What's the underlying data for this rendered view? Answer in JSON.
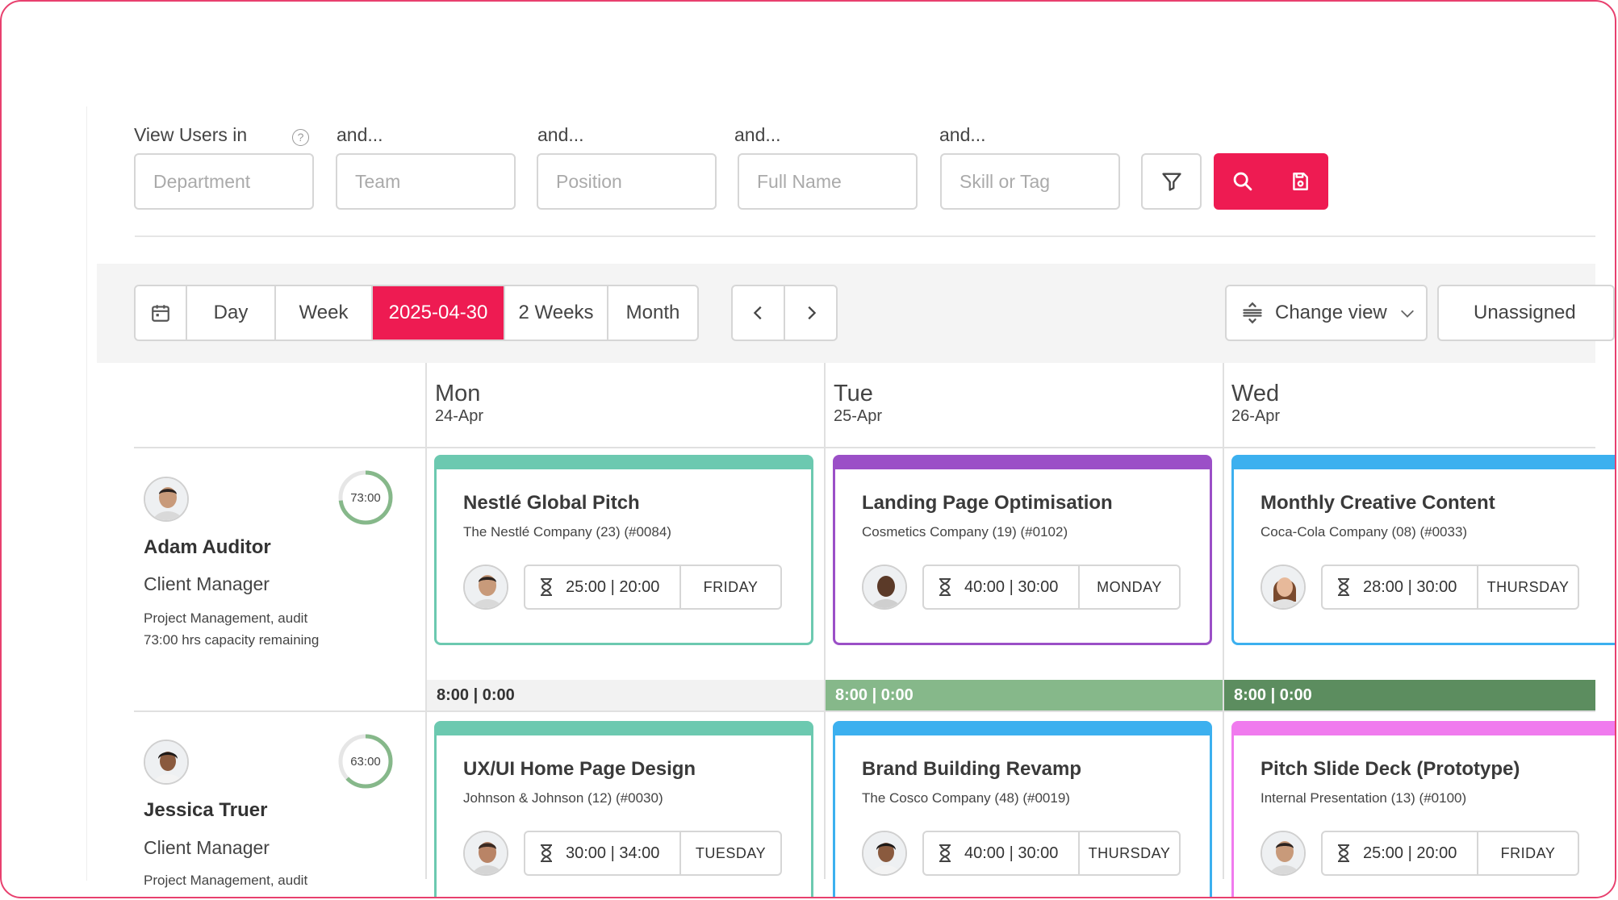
{
  "filters": {
    "label_view_users": "View Users in",
    "label_and": "and...",
    "department_placeholder": "Department",
    "team_placeholder": "Team",
    "position_placeholder": "Position",
    "full_name_placeholder": "Full Name",
    "skill_placeholder": "Skill or Tag"
  },
  "toolbar": {
    "day_label": "Day",
    "week_label": "Week",
    "date_label": "2025-04-30",
    "two_weeks_label": "2 Weeks",
    "month_label": "Month",
    "change_view_label": "Change view",
    "unassigned_label": "Unassigned"
  },
  "days": [
    {
      "name": "Mon",
      "date": "24-Apr"
    },
    {
      "name": "Tue",
      "date": "25-Apr"
    },
    {
      "name": "Wed",
      "date": "26-Apr"
    }
  ],
  "users": [
    {
      "name": "Adam Auditor",
      "role": "Client Manager",
      "skills": "Project Management, audit",
      "capacity": "73:00 hrs capacity remaining",
      "ring": "73:00",
      "ring_fraction": 0.73
    },
    {
      "name": "Jessica Truer",
      "role": "Client Manager",
      "skills": "Project Management, audit",
      "ring": "63:00",
      "ring_fraction": 0.63
    }
  ],
  "totals": [
    "8:00 | 0:00",
    "8:00 | 0:00",
    "8:00 | 0:00"
  ],
  "total_colors": [
    "#f2f2f2",
    "#86b88a",
    "#5c8d5f"
  ],
  "cards": [
    {
      "title": "Nestlé Global Pitch",
      "subtitle": "The Nestlé Company (23) (#0084)",
      "hours": "25:00 | 20:00",
      "day": "FRIDAY",
      "color": "#6cc9b0"
    },
    {
      "title": "Landing Page Optimisation",
      "subtitle": "Cosmetics Company (19) (#0102)",
      "hours": "40:00 | 30:00",
      "day": "MONDAY",
      "color": "#9b4fc7"
    },
    {
      "title": "Monthly Creative Content",
      "subtitle": "Coca-Cola Company (08) (#0033)",
      "hours": "28:00 | 30:00",
      "day": "THURSDAY",
      "color": "#3cb0ef"
    },
    {
      "title": "UX/UI Home Page Design",
      "subtitle": "Johnson & Johnson (12) (#0030)",
      "hours": "30:00 | 34:00",
      "day": "TUESDAY",
      "color": "#6cc9b0"
    },
    {
      "title": "Brand Building Revamp",
      "subtitle": "The Cosco Company (48) (#0019)",
      "hours": "40:00 | 30:00",
      "day": "THURSDAY",
      "color": "#3cb0ef"
    },
    {
      "title": "Pitch Slide Deck (Prototype)",
      "subtitle": "Internal Presentation (13) (#0100)",
      "hours": "25:00 | 20:00",
      "day": "FRIDAY",
      "color": "#f07bee"
    }
  ],
  "colors": {
    "accent": "#ee1b52",
    "frame_border": "#e8406e",
    "ring": "#86b88a"
  }
}
